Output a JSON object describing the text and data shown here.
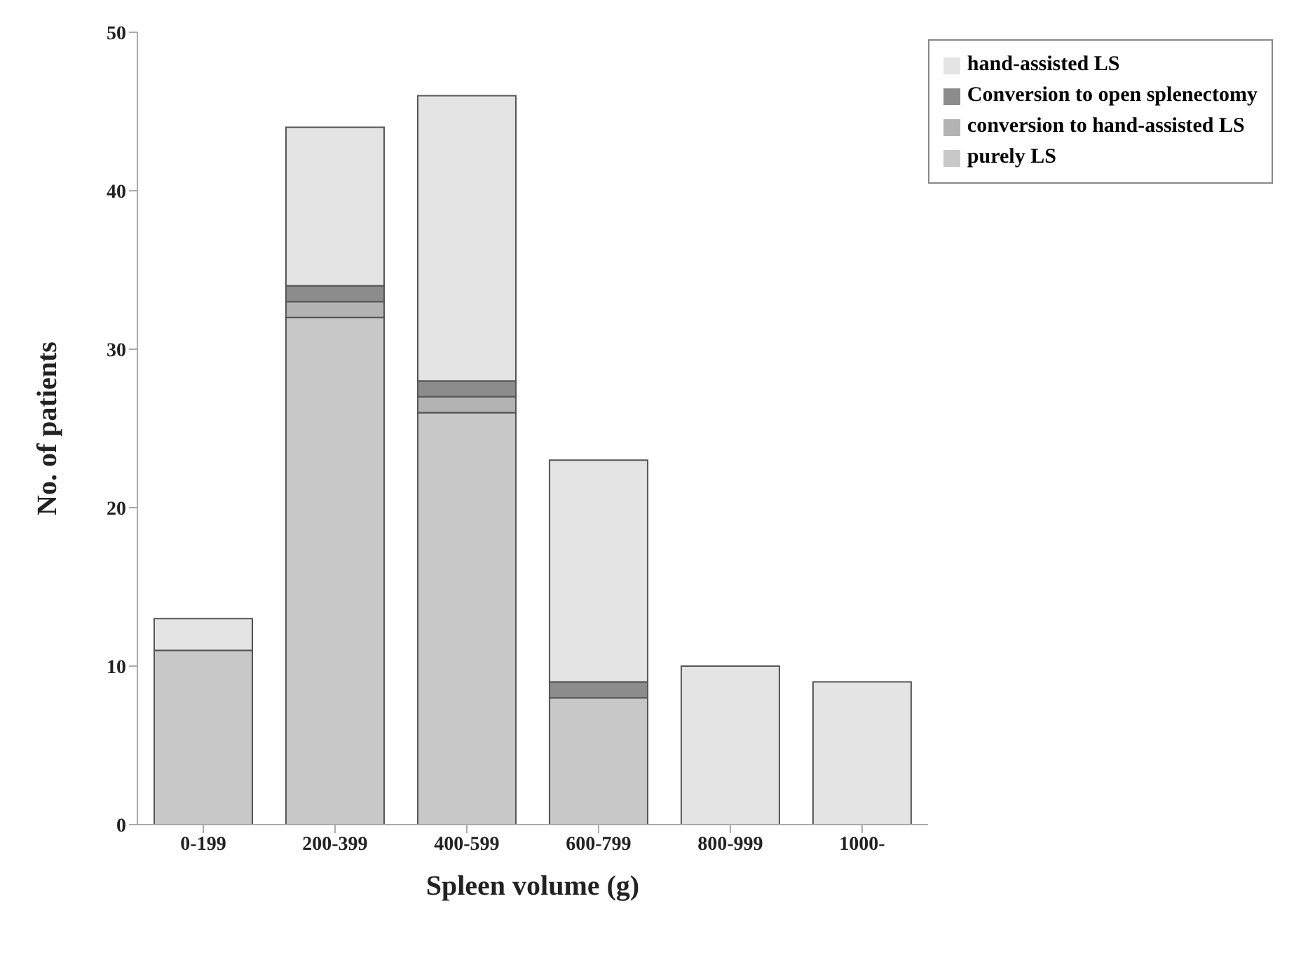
{
  "chart_data": {
    "type": "bar",
    "stacked": true,
    "xlabel": "Spleen volume (g)",
    "ylabel": "No. of patients",
    "categories": [
      "0-199",
      "200-399",
      "400-599",
      "600-799",
      "800-999",
      "1000-"
    ],
    "series": [
      {
        "name": "purely LS",
        "color": "#c8c8c8",
        "values": [
          11,
          32,
          26,
          8,
          0,
          0
        ]
      },
      {
        "name": "conversion to hand-assisted LS",
        "color": "#b3b3b3",
        "values": [
          0,
          1,
          1,
          0,
          0,
          0
        ]
      },
      {
        "name": "Conversion to open splenectomy",
        "color": "#8c8c8c",
        "values": [
          0,
          1,
          1,
          1,
          0,
          0
        ]
      },
      {
        "name": "hand-assisted LS",
        "color": "#e4e4e4",
        "values": [
          2,
          10,
          18,
          14,
          10,
          9
        ]
      }
    ],
    "ylim": [
      0,
      50
    ],
    "yticks": [
      0,
      10,
      20,
      30,
      40,
      50
    ],
    "grid": false,
    "legend": "top right"
  }
}
